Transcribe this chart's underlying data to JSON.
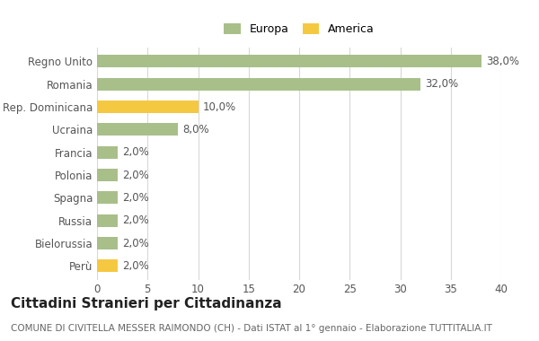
{
  "categories": [
    "Perù",
    "Bielorussia",
    "Russia",
    "Spagna",
    "Polonia",
    "Francia",
    "Ucraina",
    "Rep. Dominicana",
    "Romania",
    "Regno Unito"
  ],
  "values": [
    2.0,
    2.0,
    2.0,
    2.0,
    2.0,
    2.0,
    8.0,
    10.0,
    32.0,
    38.0
  ],
  "colors": [
    "#f5c842",
    "#a8bf8a",
    "#a8bf8a",
    "#a8bf8a",
    "#a8bf8a",
    "#a8bf8a",
    "#a8bf8a",
    "#f5c842",
    "#a8bf8a",
    "#a8bf8a"
  ],
  "bar_labels": [
    "2,0%",
    "2,0%",
    "2,0%",
    "2,0%",
    "2,0%",
    "2,0%",
    "8,0%",
    "10,0%",
    "32,0%",
    "38,0%"
  ],
  "xlim": [
    0,
    40
  ],
  "xticks": [
    0,
    5,
    10,
    15,
    20,
    25,
    30,
    35,
    40
  ],
  "title": "Cittadini Stranieri per Cittadinanza",
  "subtitle": "COMUNE DI CIVITELLA MESSER RAIMONDO (CH) - Dati ISTAT al 1° gennaio - Elaborazione TUTTITALIA.IT",
  "legend_labels": [
    "Europa",
    "America"
  ],
  "legend_colors": [
    "#a8bf8a",
    "#f5c842"
  ],
  "background_color": "#ffffff",
  "grid_color": "#d8d8d8",
  "bar_height": 0.55,
  "label_fontsize": 8.5,
  "title_fontsize": 11,
  "subtitle_fontsize": 7.5,
  "tick_fontsize": 8.5,
  "legend_fontsize": 9
}
